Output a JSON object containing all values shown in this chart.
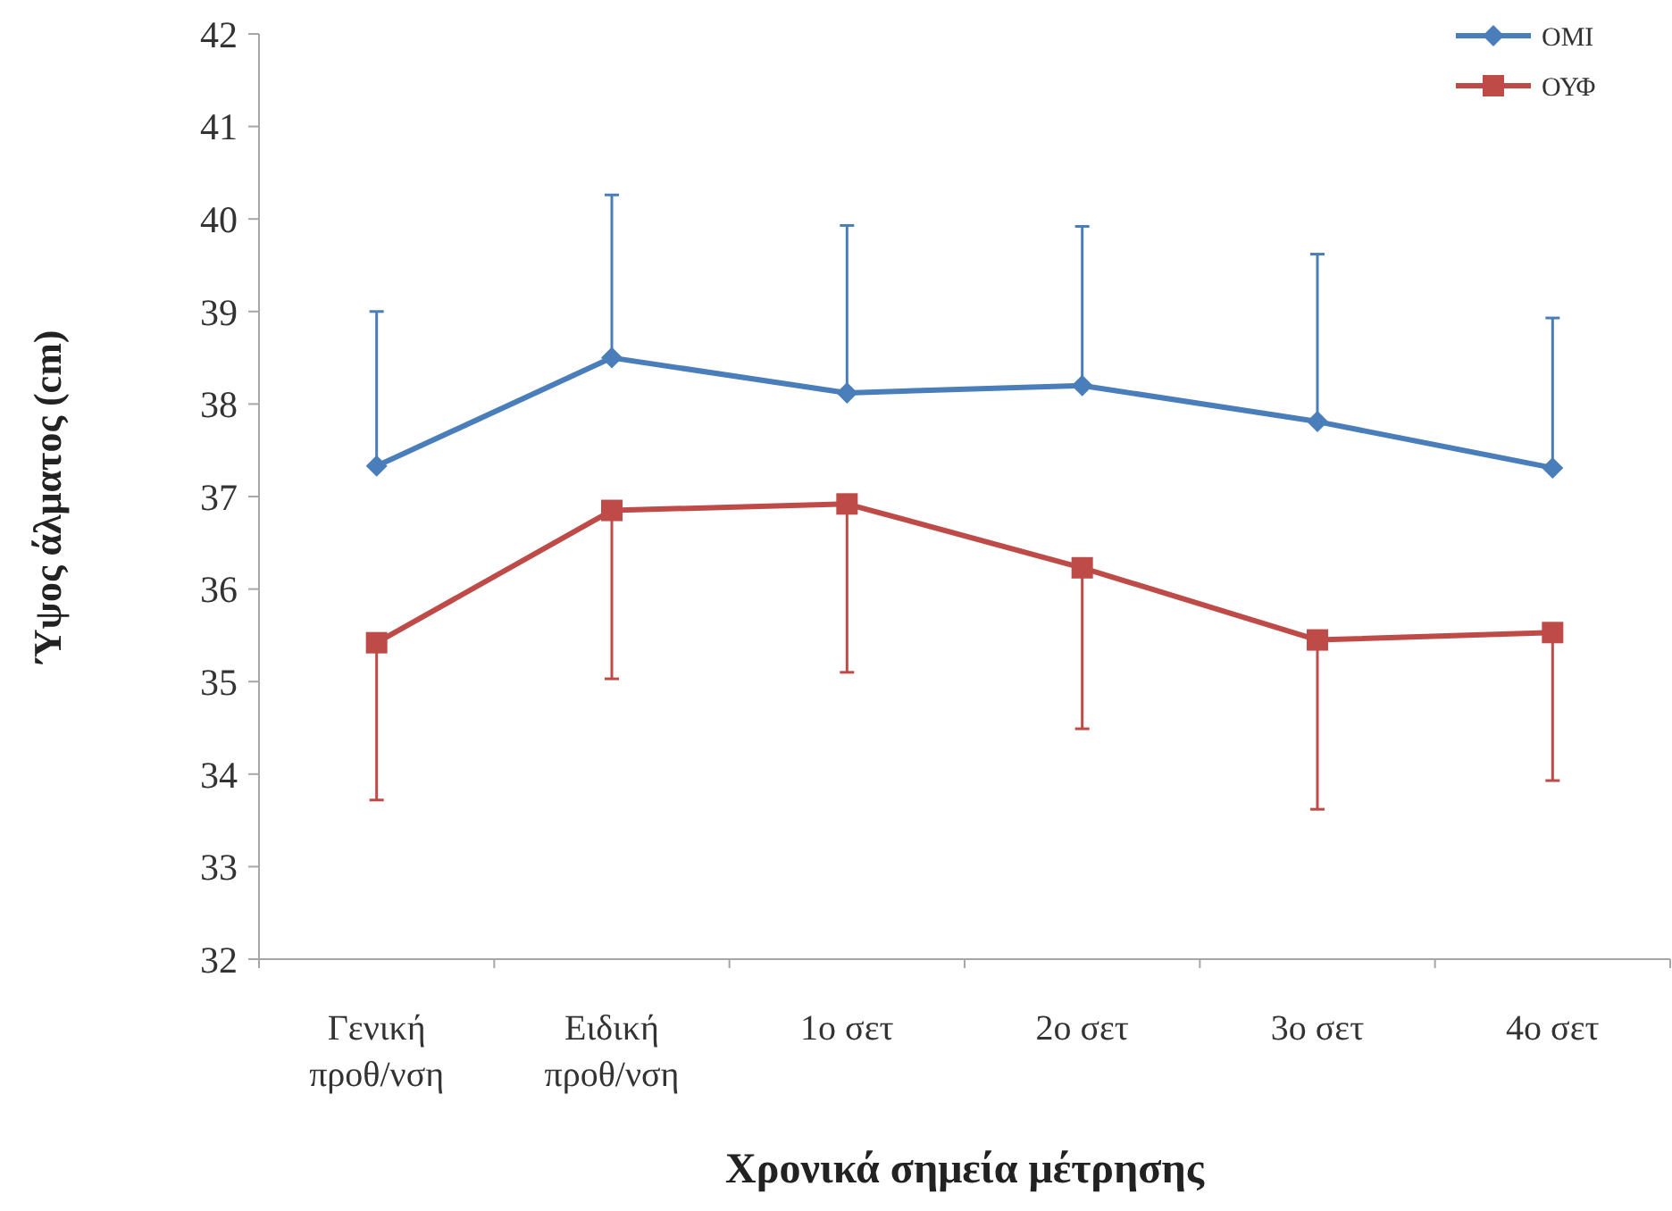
{
  "chart_data": {
    "type": "line",
    "xlabel": "Χρονικά σημεία μέτρησης",
    "ylabel": "Ύψος άλματος (cm)",
    "categories": [
      "Γενική προθ/νση",
      "Ειδική προθ/νση",
      "1ο σετ",
      "2ο σετ",
      "3ο σετ",
      "4ο σετ"
    ],
    "series": [
      {
        "name": "ΟΜΙ",
        "color": "#4a7ebb",
        "marker": "diamond",
        "values": [
          37.33,
          38.5,
          38.12,
          38.2,
          37.81,
          37.31
        ],
        "errors": [
          [
            37.33,
            39.0
          ],
          [
            38.5,
            40.26
          ],
          [
            38.12,
            39.93
          ],
          [
            38.2,
            39.92
          ],
          [
            37.81,
            39.62
          ],
          [
            37.31,
            38.93
          ]
        ]
      },
      {
        "name": "ΟΥΦ",
        "color": "#be4b48",
        "marker": "square",
        "values": [
          35.42,
          36.85,
          36.92,
          36.23,
          35.45,
          35.53
        ],
        "errors": [
          [
            33.72,
            35.42
          ],
          [
            35.03,
            36.85
          ],
          [
            35.1,
            36.92
          ],
          [
            34.49,
            36.23
          ],
          [
            33.62,
            35.45
          ],
          [
            33.93,
            35.53
          ]
        ]
      }
    ],
    "ylim": [
      32,
      42
    ],
    "yticks": [
      32,
      33,
      34,
      35,
      36,
      37,
      38,
      39,
      40,
      41,
      42
    ],
    "grid": false,
    "legend": "top right",
    "line_style": "solid"
  }
}
